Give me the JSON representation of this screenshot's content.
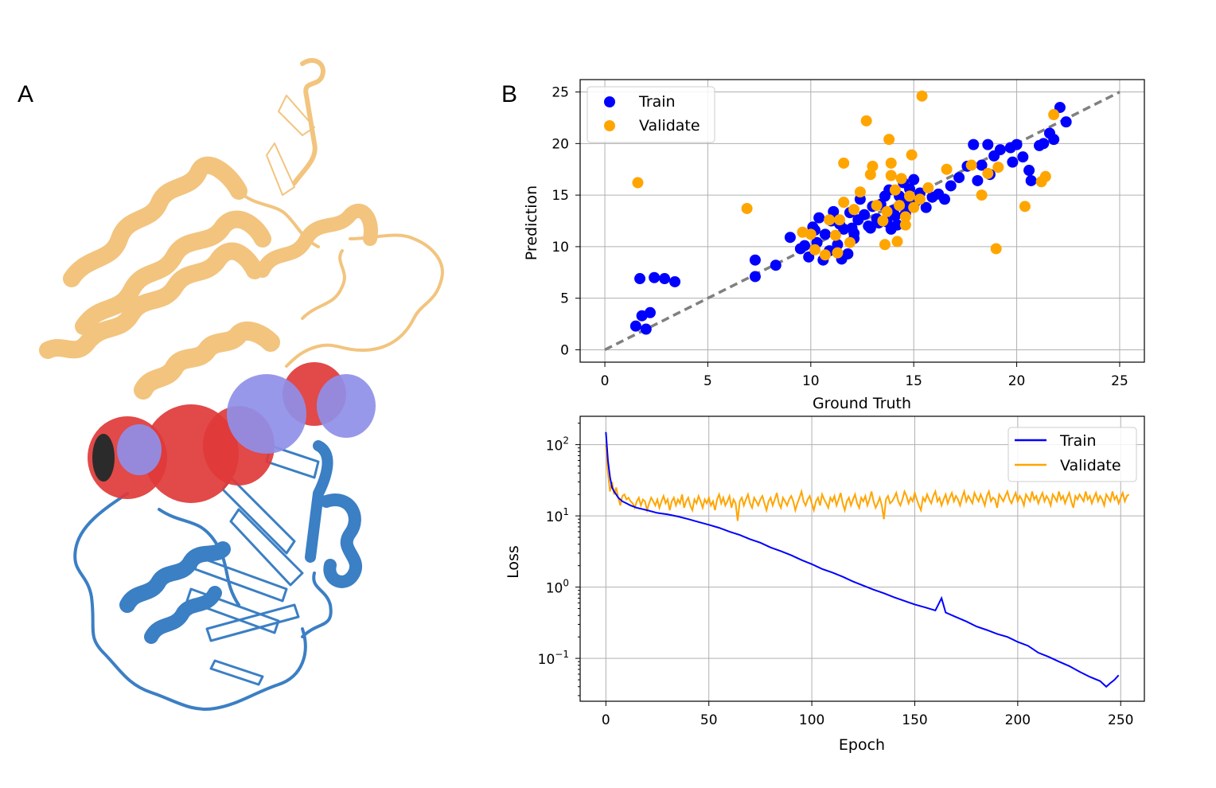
{
  "panels": {
    "a_label": "A",
    "b_label": "B"
  },
  "protein": {
    "upper_domain_color": "#f2c47e",
    "lower_domain_color": "#3b7fc4",
    "pocket_red_color": "#e03a3a",
    "pocket_blue_color": "#8f8fe8"
  },
  "chart_data": [
    {
      "type": "scatter",
      "xlabel": "Ground Truth",
      "ylabel": "Prediction",
      "xlim": [
        -1.2,
        26.2
      ],
      "ylim": [
        -1.2,
        26.2
      ],
      "xticks": [
        0,
        5,
        10,
        15,
        20,
        25
      ],
      "yticks": [
        0,
        5,
        10,
        15,
        20,
        25
      ],
      "grid": true,
      "legend_position": "top-left",
      "reference_line": {
        "from": [
          0,
          0
        ],
        "to": [
          25,
          25
        ],
        "color": "#808080",
        "style": "dashed"
      },
      "series": [
        {
          "name": "Train",
          "color": "#0000ff",
          "points": [
            [
              1.7,
              6.9
            ],
            [
              2.4,
              7.0
            ],
            [
              2.9,
              6.9
            ],
            [
              3.4,
              6.6
            ],
            [
              1.5,
              2.3
            ],
            [
              1.8,
              3.3
            ],
            [
              2.2,
              3.6
            ],
            [
              2.0,
              2.0
            ],
            [
              7.3,
              8.7
            ],
            [
              7.3,
              7.1
            ],
            [
              8.3,
              8.2
            ],
            [
              9.0,
              10.9
            ],
            [
              9.5,
              9.8
            ],
            [
              9.9,
              9.0
            ],
            [
              10.3,
              10.4
            ],
            [
              10.6,
              8.7
            ],
            [
              10.2,
              11.6
            ],
            [
              10.7,
              11.2
            ],
            [
              11.0,
              12.5
            ],
            [
              11.3,
              10.2
            ],
            [
              11.6,
              11.7
            ],
            [
              11.8,
              9.3
            ],
            [
              11.5,
              8.8
            ],
            [
              12.1,
              11.3
            ],
            [
              12.3,
              12.6
            ],
            [
              12.6,
              13.1
            ],
            [
              12.9,
              11.8
            ],
            [
              13.2,
              12.7
            ],
            [
              13.4,
              14.1
            ],
            [
              13.7,
              12.4
            ],
            [
              14.0,
              13.5
            ],
            [
              14.3,
              14.9
            ],
            [
              14.6,
              13.2
            ],
            [
              14.8,
              15.6
            ],
            [
              15.1,
              14.4
            ],
            [
              13.6,
              14.9
            ],
            [
              12.4,
              14.6
            ],
            [
              11.9,
              13.3
            ],
            [
              13.0,
              13.9
            ],
            [
              14.5,
              16.2
            ],
            [
              15.3,
              15.2
            ],
            [
              15.6,
              13.8
            ],
            [
              15.9,
              14.8
            ],
            [
              16.5,
              14.6
            ],
            [
              10.4,
              12.8
            ],
            [
              11.1,
              13.4
            ],
            [
              12.8,
              12.0
            ],
            [
              13.9,
              11.7
            ],
            [
              14.2,
              12.1
            ],
            [
              9.7,
              10.1
            ],
            [
              10.9,
              9.6
            ],
            [
              16.8,
              15.9
            ],
            [
              17.2,
              16.7
            ],
            [
              17.6,
              17.8
            ],
            [
              18.1,
              16.4
            ],
            [
              18.3,
              17.9
            ],
            [
              18.7,
              17.0
            ],
            [
              18.9,
              18.8
            ],
            [
              19.2,
              19.4
            ],
            [
              18.6,
              19.9
            ],
            [
              17.9,
              19.9
            ],
            [
              19.7,
              19.6
            ],
            [
              20.0,
              19.9
            ],
            [
              19.8,
              18.2
            ],
            [
              20.3,
              18.7
            ],
            [
              20.6,
              17.4
            ],
            [
              20.7,
              16.4
            ],
            [
              21.3,
              20.0
            ],
            [
              21.6,
              21.0
            ],
            [
              21.8,
              20.4
            ],
            [
              22.1,
              23.5
            ],
            [
              22.4,
              22.1
            ],
            [
              21.1,
              19.8
            ],
            [
              16.2,
              15.1
            ],
            [
              12.1,
              10.8
            ],
            [
              13.3,
              12.3
            ],
            [
              14.7,
              14.2
            ],
            [
              11.4,
              12.2
            ],
            [
              10.1,
              11.9
            ],
            [
              15.0,
              16.5
            ],
            [
              13.8,
              15.5
            ],
            [
              12.0,
              11.8
            ],
            [
              14.1,
              13.0
            ]
          ]
        },
        {
          "name": "Validate",
          "color": "#ffa500",
          "points": [
            [
              1.6,
              16.2
            ],
            [
              6.9,
              13.7
            ],
            [
              9.6,
              11.4
            ],
            [
              10.0,
              11.2
            ],
            [
              10.2,
              9.7
            ],
            [
              10.7,
              9.2
            ],
            [
              10.9,
              12.6
            ],
            [
              11.2,
              11.1
            ],
            [
              11.3,
              9.4
            ],
            [
              11.4,
              12.6
            ],
            [
              11.6,
              14.3
            ],
            [
              11.6,
              18.1
            ],
            [
              11.9,
              10.4
            ],
            [
              12.1,
              13.6
            ],
            [
              12.4,
              15.3
            ],
            [
              12.7,
              22.2
            ],
            [
              12.9,
              17.0
            ],
            [
              13.0,
              17.8
            ],
            [
              13.2,
              14.0
            ],
            [
              13.5,
              12.5
            ],
            [
              13.6,
              10.2
            ],
            [
              13.7,
              13.4
            ],
            [
              13.8,
              20.4
            ],
            [
              13.9,
              18.1
            ],
            [
              14.1,
              15.5
            ],
            [
              14.2,
              10.5
            ],
            [
              14.3,
              14.0
            ],
            [
              14.4,
              16.6
            ],
            [
              14.6,
              12.9
            ],
            [
              14.8,
              14.9
            ],
            [
              14.9,
              18.9
            ],
            [
              15.0,
              13.8
            ],
            [
              15.4,
              24.6
            ],
            [
              15.7,
              15.7
            ],
            [
              16.6,
              17.5
            ],
            [
              17.8,
              17.9
            ],
            [
              18.3,
              15.0
            ],
            [
              18.6,
              17.1
            ],
            [
              19.0,
              9.8
            ],
            [
              19.1,
              17.7
            ],
            [
              20.4,
              13.9
            ],
            [
              21.2,
              16.3
            ],
            [
              21.4,
              16.8
            ],
            [
              21.8,
              22.8
            ],
            [
              14.6,
              12.1
            ],
            [
              13.9,
              16.9
            ],
            [
              15.3,
              14.6
            ]
          ]
        }
      ]
    },
    {
      "type": "line",
      "xlabel": "Epoch",
      "ylabel": "Loss",
      "yscale": "log",
      "xlim": [
        -12.5,
        261.5
      ],
      "ylim": [
        0.025,
        250
      ],
      "xticks": [
        0,
        50,
        100,
        150,
        200,
        250
      ],
      "yticks": [
        {
          "value": 100,
          "mantissa": "10",
          "exponent": "2"
        },
        {
          "value": 10,
          "mantissa": "10",
          "exponent": "1"
        },
        {
          "value": 1,
          "mantissa": "10",
          "exponent": "0"
        },
        {
          "value": 0.1,
          "mantissa": "10",
          "exponent": "−1"
        }
      ],
      "grid": true,
      "legend_position": "top-right",
      "series": [
        {
          "name": "Train",
          "color": "#0000ff",
          "x": [
            0,
            1,
            2,
            3,
            4,
            5,
            6,
            8,
            10,
            12,
            15,
            20,
            25,
            30,
            35,
            40,
            45,
            50,
            55,
            60,
            65,
            70,
            75,
            80,
            85,
            90,
            95,
            100,
            105,
            110,
            115,
            120,
            125,
            130,
            135,
            140,
            145,
            150,
            155,
            160,
            163,
            165,
            170,
            175,
            180,
            185,
            190,
            195,
            200,
            205,
            210,
            215,
            220,
            225,
            230,
            235,
            240,
            243,
            245,
            247,
            249
          ],
          "values": [
            150,
            60,
            35,
            25,
            22,
            20,
            18,
            16,
            15,
            14,
            13,
            12,
            11,
            10.5,
            9.8,
            9.0,
            8.2,
            7.5,
            6.8,
            6.0,
            5.4,
            4.7,
            4.2,
            3.6,
            3.2,
            2.8,
            2.4,
            2.1,
            1.8,
            1.6,
            1.4,
            1.2,
            1.05,
            0.92,
            0.82,
            0.72,
            0.64,
            0.57,
            0.52,
            0.47,
            0.7,
            0.44,
            0.38,
            0.33,
            0.28,
            0.25,
            0.22,
            0.2,
            0.17,
            0.15,
            0.12,
            0.105,
            0.09,
            0.078,
            0.065,
            0.055,
            0.048,
            0.04,
            0.045,
            0.05,
            0.058
          ]
        },
        {
          "name": "Validate",
          "color": "#ffa500",
          "values": [
            100,
            40,
            22,
            30,
            20,
            25,
            18,
            14,
            19,
            20,
            17,
            18,
            16,
            15,
            13,
            16,
            18,
            14,
            17,
            16,
            12,
            15,
            18,
            16,
            14,
            17,
            13,
            16,
            19,
            15,
            17,
            12,
            16,
            18,
            14,
            17,
            15,
            20,
            13,
            16,
            18,
            14,
            12,
            17,
            15,
            19,
            16,
            13,
            17,
            15,
            18,
            14,
            16,
            12,
            17,
            20,
            15,
            18,
            14,
            16,
            19,
            13,
            17,
            15,
            8.5,
            16,
            18,
            14,
            17,
            20,
            15,
            13,
            18,
            16,
            14,
            17,
            19,
            15,
            12,
            16,
            18,
            14,
            17,
            21,
            15,
            13,
            18,
            16,
            14,
            17,
            19,
            16,
            12,
            15,
            18,
            22,
            16,
            14,
            17,
            19,
            15,
            12,
            16,
            18,
            14,
            20,
            17,
            15,
            13,
            18,
            16,
            19,
            14,
            17,
            21,
            15,
            12,
            16,
            18,
            14,
            17,
            20,
            15,
            13,
            18,
            16,
            19,
            14,
            17,
            22,
            16,
            13,
            15,
            18,
            14,
            9,
            17,
            19,
            15,
            16,
            18,
            21,
            16,
            14,
            17,
            22,
            19,
            15,
            18,
            16,
            21,
            17,
            14,
            12,
            18,
            16,
            20,
            17,
            15,
            19,
            22,
            16,
            18,
            14,
            17,
            20,
            15,
            18,
            21,
            16,
            19,
            17,
            14,
            18,
            22,
            16,
            19,
            17,
            15,
            21,
            18,
            16,
            20,
            17,
            14,
            19,
            22,
            16,
            18,
            17,
            13,
            20,
            18,
            16,
            19,
            22,
            17,
            15,
            18,
            21,
            16,
            19,
            17,
            14,
            20,
            18,
            16,
            22,
            17,
            19,
            15,
            18,
            21,
            16,
            19,
            17,
            14,
            20,
            18,
            16,
            22,
            17,
            19,
            15,
            18,
            21,
            16,
            13,
            19,
            17,
            20,
            18,
            16,
            22,
            17,
            19,
            15,
            18,
            21,
            16,
            19,
            17,
            14,
            20,
            18,
            16,
            22,
            17,
            19,
            15,
            18,
            21,
            16,
            19,
            20
          ]
        }
      ]
    }
  ]
}
